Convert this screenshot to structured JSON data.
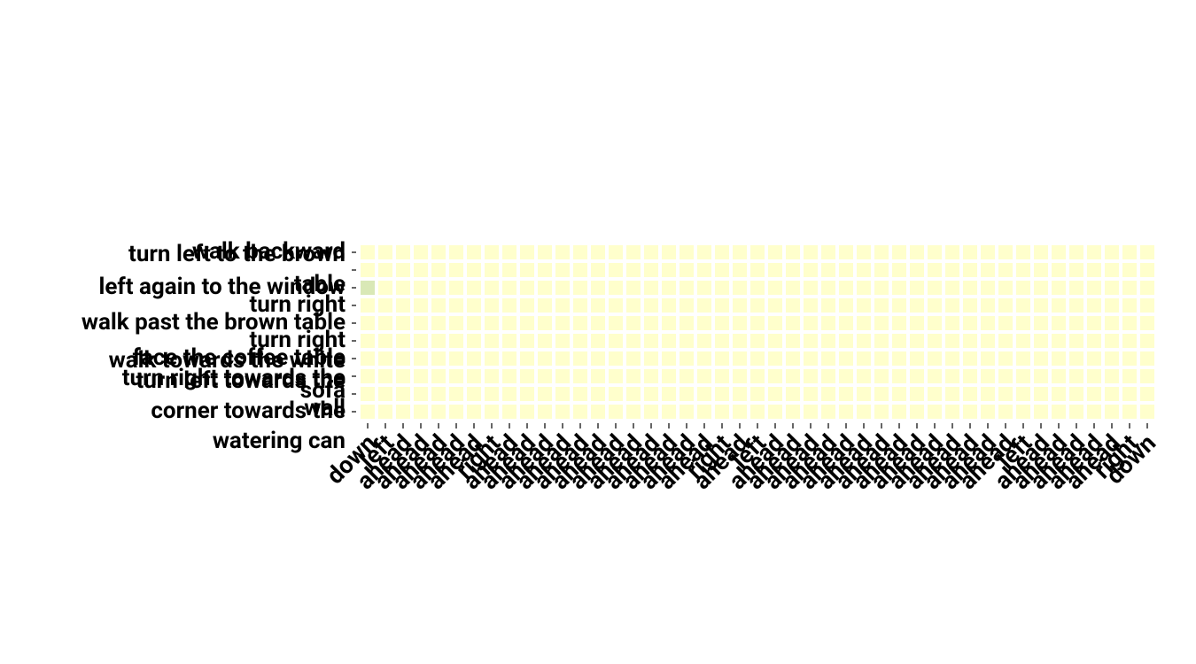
{
  "chart_data": {
    "type": "heatmap",
    "categories": [
      "down",
      "left",
      "ahead",
      "ahead",
      "ahead",
      "ahead",
      "ahead",
      "right",
      "ahead",
      "ahead",
      "ahead",
      "ahead",
      "ahead",
      "ahead",
      "ahead",
      "ahead",
      "ahead",
      "ahead",
      "ahead",
      "ahead",
      "right",
      "ahead",
      "left",
      "ahead",
      "ahead",
      "ahead",
      "ahead",
      "ahead",
      "ahead",
      "ahead",
      "ahead",
      "ahead",
      "ahead",
      "ahead",
      "ahead",
      "ahead",
      "ahead",
      "left",
      "ahead",
      "ahead",
      "ahead",
      "ahead",
      "ahead",
      "right",
      "down"
    ],
    "rows": [
      [
        "walk backward"
      ],
      [
        "turn left to the brown",
        "table"
      ],
      [
        "left again to the window"
      ],
      [
        "turn right"
      ],
      [
        "walk past the brown table"
      ],
      [
        "turn right"
      ],
      [
        "face the coffee table"
      ],
      [
        "walk towards the white",
        "sofa"
      ],
      [
        "turn right towards the",
        "wall"
      ],
      [
        "turn left towards the",
        "corner towards the",
        "watering can"
      ]
    ],
    "values": [
      [
        0,
        0,
        0,
        0,
        0,
        0,
        0,
        0,
        0,
        0,
        0,
        0,
        0,
        0,
        0,
        0,
        0,
        0,
        0,
        0,
        0,
        0,
        0,
        0,
        0,
        0,
        0,
        0,
        0,
        0,
        0,
        0,
        0,
        0,
        0,
        0,
        0,
        0,
        0,
        0,
        0,
        0,
        0,
        0,
        0
      ],
      [
        0,
        0,
        0,
        0,
        0,
        0,
        0,
        0,
        0,
        0,
        0,
        0,
        0,
        0,
        0,
        0,
        0,
        0,
        0,
        0,
        0,
        0,
        0,
        0,
        0,
        0,
        0,
        0,
        0,
        0,
        0,
        0,
        0,
        0,
        0,
        0,
        0,
        0,
        0,
        0,
        0,
        0,
        0,
        0,
        0
      ],
      [
        0.15,
        0,
        0,
        0,
        0,
        0,
        0,
        0,
        0,
        0,
        0,
        0,
        0,
        0,
        0,
        0,
        0,
        0,
        0,
        0,
        0,
        0,
        0,
        0,
        0,
        0,
        0,
        0,
        0,
        0,
        0,
        0,
        0,
        0,
        0,
        0,
        0,
        0,
        0,
        0,
        0,
        0,
        0,
        0,
        0
      ],
      [
        0,
        0,
        0,
        0,
        0,
        0,
        0,
        0,
        0,
        0,
        0,
        0,
        0,
        0,
        0,
        0,
        0,
        0,
        0,
        0,
        0,
        0,
        0,
        0,
        0,
        0,
        0,
        0,
        0,
        0,
        0,
        0,
        0,
        0,
        0,
        0,
        0,
        0,
        0,
        0,
        0,
        0,
        0,
        0,
        0
      ],
      [
        0,
        0,
        0,
        0,
        0,
        0,
        0,
        0,
        0,
        0,
        0,
        0,
        0,
        0,
        0,
        0,
        0,
        0,
        0,
        0,
        0,
        0,
        0,
        0,
        0,
        0,
        0,
        0,
        0,
        0,
        0,
        0,
        0,
        0,
        0,
        0,
        0,
        0,
        0,
        0,
        0,
        0,
        0,
        0,
        0
      ],
      [
        0,
        0,
        0,
        0,
        0,
        0,
        0,
        0,
        0,
        0,
        0,
        0,
        0,
        0,
        0,
        0,
        0,
        0,
        0,
        0,
        0,
        0,
        0,
        0,
        0,
        0,
        0,
        0,
        0,
        0,
        0,
        0,
        0,
        0,
        0,
        0,
        0,
        0,
        0,
        0,
        0,
        0,
        0,
        0,
        0
      ],
      [
        0,
        0,
        0,
        0,
        0,
        0,
        0,
        0,
        0,
        0,
        0,
        0,
        0,
        0,
        0,
        0,
        0,
        0,
        0,
        0,
        0,
        0,
        0,
        0,
        0,
        0,
        0,
        0,
        0,
        0,
        0,
        0,
        0,
        0,
        0,
        0,
        0,
        0,
        0,
        0,
        0,
        0,
        0,
        0,
        0
      ],
      [
        0,
        0,
        0,
        0,
        0,
        0,
        0,
        0,
        0,
        0,
        0,
        0,
        0,
        0,
        0,
        0,
        0,
        0,
        0,
        0,
        0,
        0,
        0,
        0,
        0,
        0,
        0,
        0,
        0,
        0,
        0,
        0,
        0,
        0,
        0,
        0,
        0,
        0,
        0,
        0,
        0,
        0,
        0,
        0,
        0
      ],
      [
        0,
        0,
        0,
        0,
        0,
        0,
        0,
        0,
        0,
        0,
        0,
        0,
        0,
        0,
        0,
        0,
        0,
        0,
        0,
        0,
        0,
        0,
        0,
        0,
        0,
        0,
        0,
        0,
        0,
        0,
        0,
        0,
        0,
        0,
        0,
        0,
        0,
        0,
        0,
        0,
        0,
        0,
        0,
        0,
        0
      ],
      [
        0,
        0,
        0,
        0,
        0,
        0,
        0,
        0,
        0,
        0,
        0,
        0,
        0,
        0,
        0,
        0,
        0,
        0,
        0,
        0,
        0,
        0,
        0,
        0,
        0,
        0,
        0,
        0,
        0,
        0,
        0,
        0,
        0,
        0,
        0,
        0,
        0,
        0,
        0,
        0,
        0,
        0,
        0,
        0,
        0
      ]
    ],
    "vlim": [
      0,
      1
    ],
    "color_range": [
      "#ffffcc",
      "#006837"
    ]
  }
}
